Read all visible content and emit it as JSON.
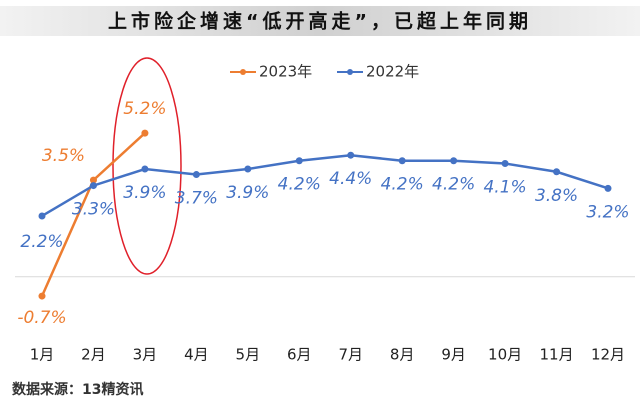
{
  "chart_data": {
    "type": "line",
    "title": "上市险企增速“低开高走”，已超上年同期",
    "source": "数据来源：13精资讯",
    "categories": [
      "1月",
      "2月",
      "3月",
      "4月",
      "5月",
      "6月",
      "7月",
      "8月",
      "9月",
      "10月",
      "11月",
      "12月"
    ],
    "series": [
      {
        "name": "2023年",
        "color": "#ed7d31",
        "values": [
          -0.7,
          3.5,
          5.2,
          null,
          null,
          null,
          null,
          null,
          null,
          null,
          null,
          null
        ],
        "value_labels": [
          "-0.7%",
          "3.5%",
          "5.2%",
          null,
          null,
          null,
          null,
          null,
          null,
          null,
          null,
          null
        ]
      },
      {
        "name": "2022年",
        "color": "#4472c4",
        "values": [
          2.2,
          3.3,
          3.9,
          3.7,
          3.9,
          4.2,
          4.4,
          4.2,
          4.2,
          4.1,
          3.8,
          3.2
        ],
        "value_labels": [
          "2.2%",
          "3.3%",
          "3.9%",
          "3.7%",
          "3.9%",
          "4.2%",
          "4.4%",
          "4.2%",
          "4.2%",
          "4.1%",
          "3.8%",
          "3.2%"
        ]
      }
    ],
    "ylim": [
      -2,
      6
    ]
  }
}
